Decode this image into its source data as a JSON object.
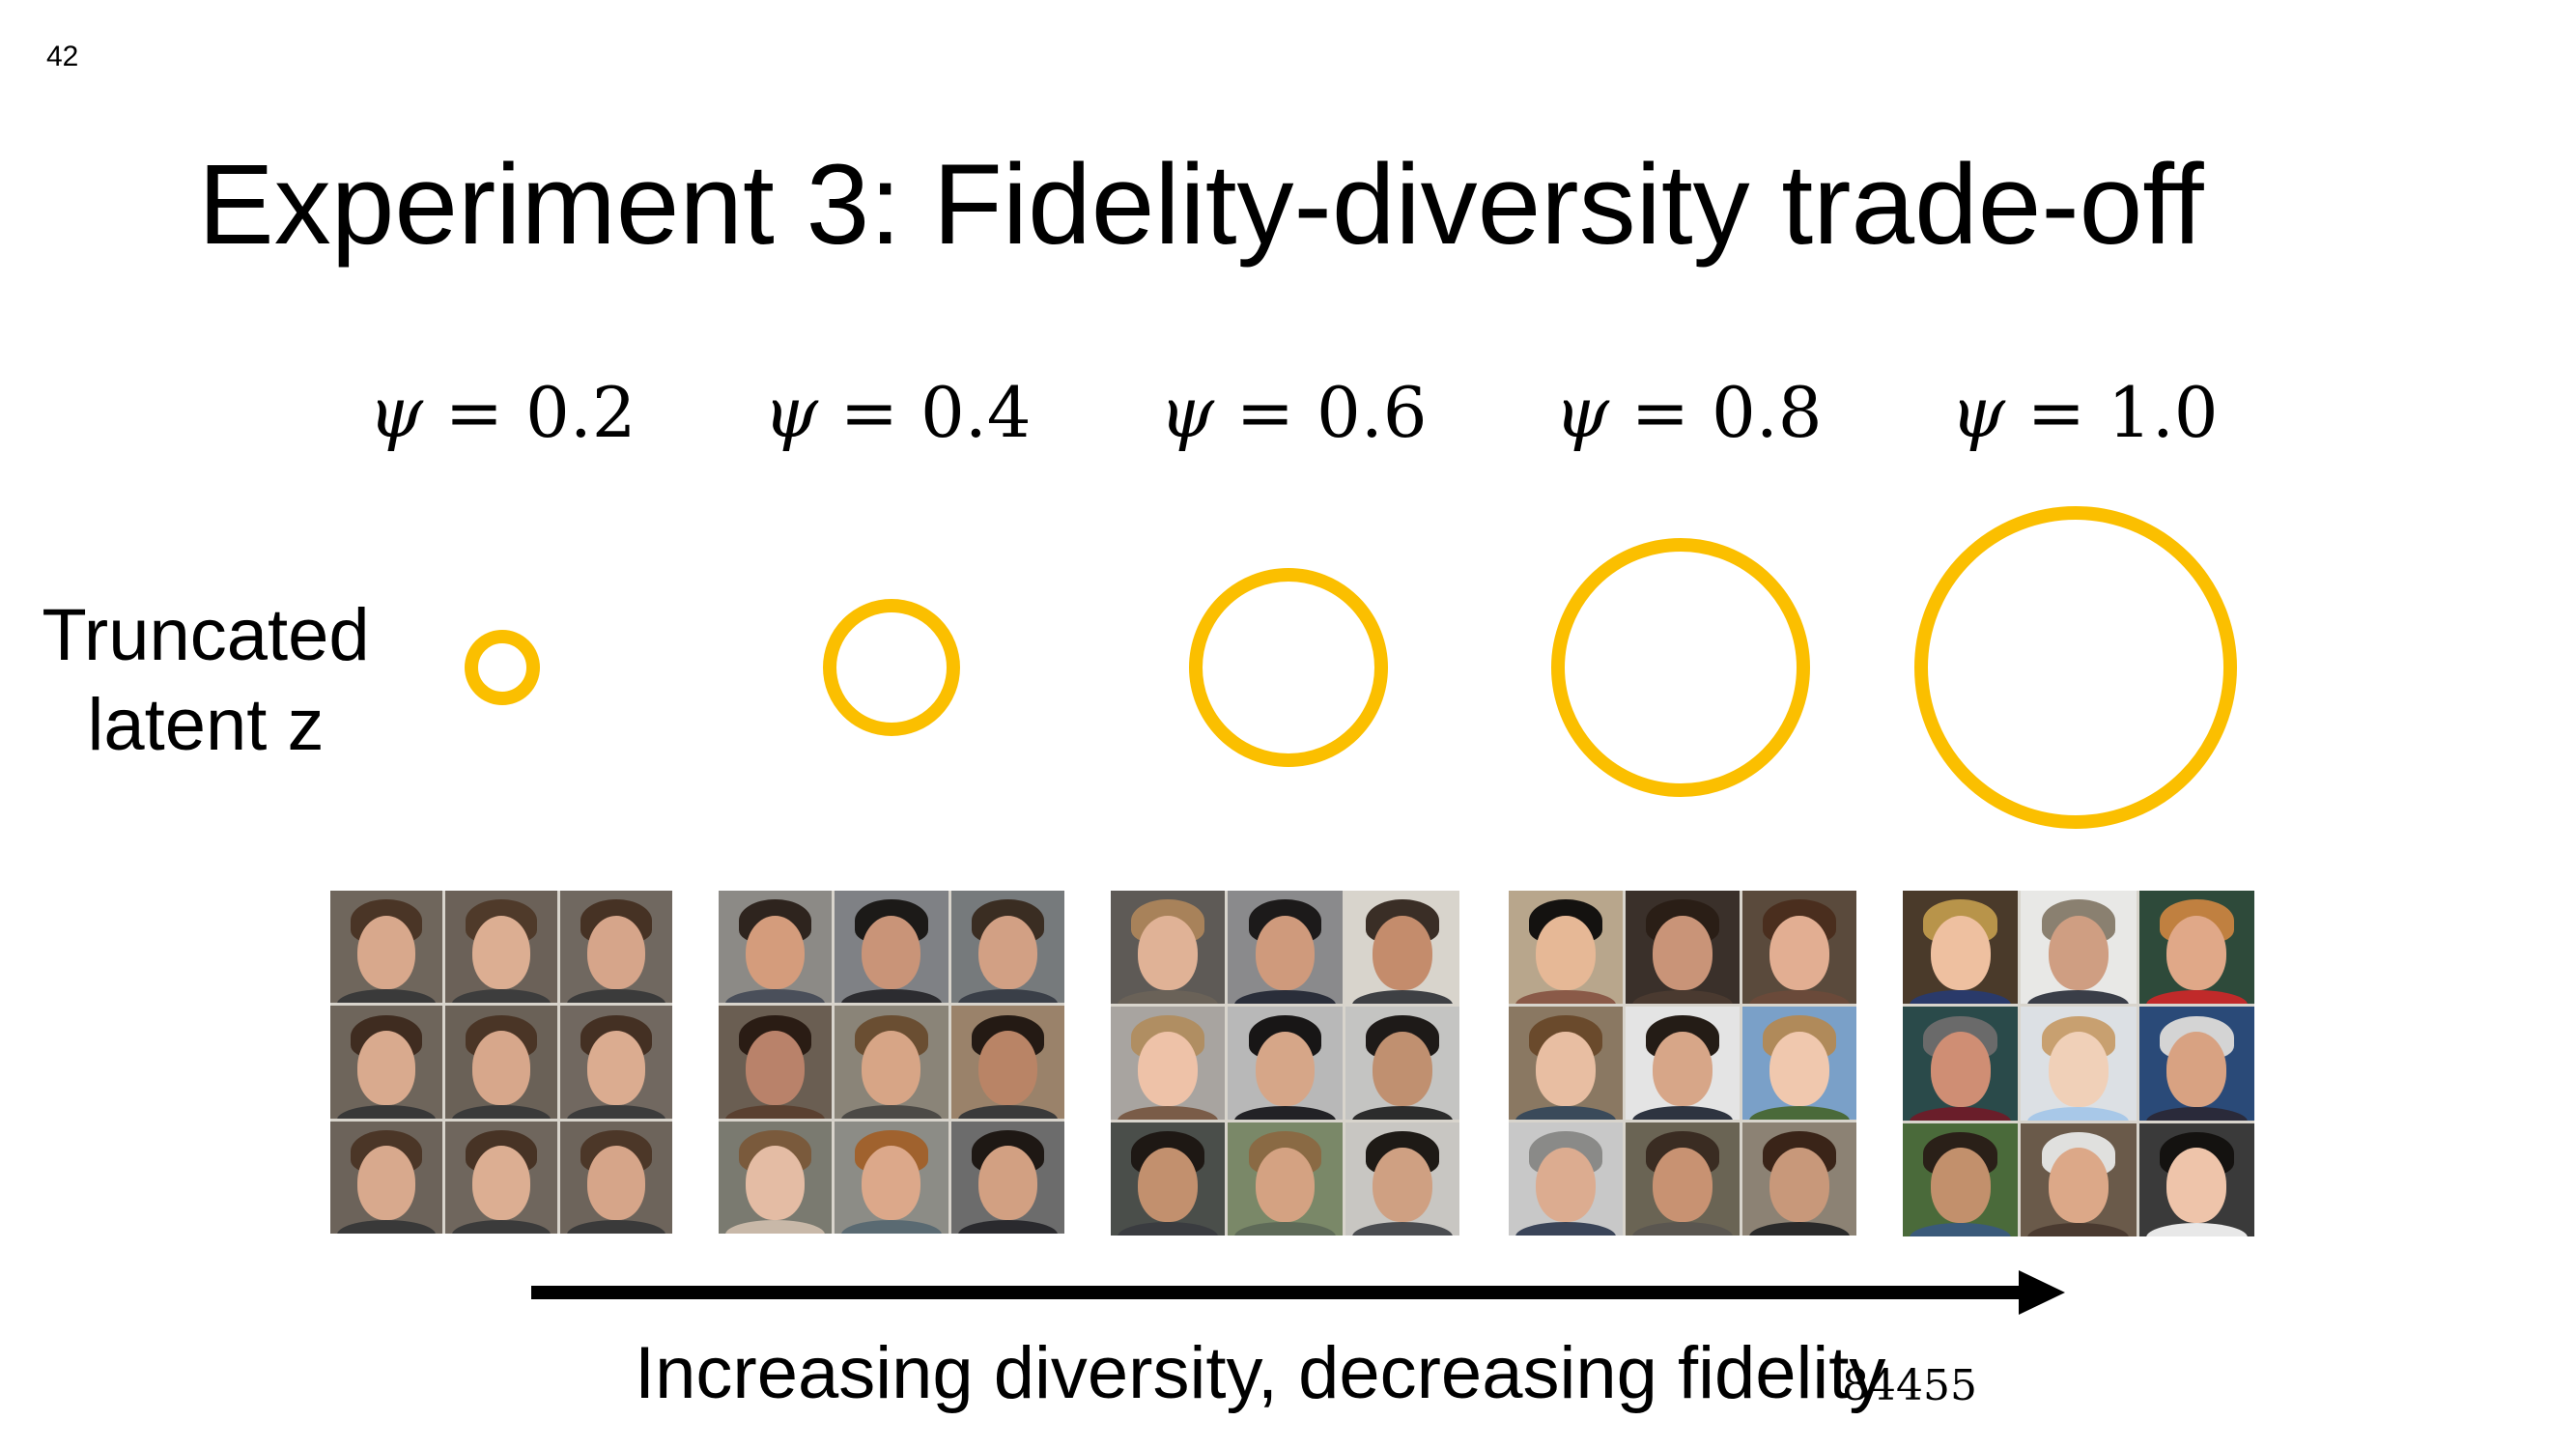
{
  "slide": {
    "page_number": "42",
    "title": "Experiment 3: Fidelity-diversity trade-off",
    "side_label": {
      "line1": "Truncated",
      "line2": "latent z"
    },
    "arrow_caption": "Increasing diversity, decreasing fidelity",
    "slide_code": "84455"
  },
  "psi_levels": [
    {
      "symbol": "ψ",
      "text": " = 0.2"
    },
    {
      "symbol": "ψ",
      "text": " = 0.4"
    },
    {
      "symbol": "ψ",
      "text": " = 0.6"
    },
    {
      "symbol": "ψ",
      "text": " = 0.8"
    },
    {
      "symbol": "ψ",
      "text": " = 1.0"
    }
  ],
  "colors": {
    "circle": "#fbbf00",
    "arrow": "#000000"
  },
  "face_grids": [
    {
      "cells": [
        {
          "bg": "#6f665c",
          "skin": "#d8a88c",
          "hair": "#4a3526",
          "shirt": "#3a3a3a"
        },
        {
          "bg": "#6b6158",
          "skin": "#dcae92",
          "hair": "#4f3a2a",
          "shirt": "#3d3d3d"
        },
        {
          "bg": "#706860",
          "skin": "#d6a58a",
          "hair": "#463224",
          "shirt": "#3b3b3b"
        },
        {
          "bg": "#6e655b",
          "skin": "#d9aa8e",
          "hair": "#3f2c20",
          "shirt": "#383838"
        },
        {
          "bg": "#6a6157",
          "skin": "#d7a78b",
          "hair": "#4a3526",
          "shirt": "#3a3a3a"
        },
        {
          "bg": "#716860",
          "skin": "#dbac90",
          "hair": "#443023",
          "shirt": "#3c3c3c"
        },
        {
          "bg": "#6c635a",
          "skin": "#d8a98d",
          "hair": "#4b3627",
          "shirt": "#393939"
        },
        {
          "bg": "#6f665d",
          "skin": "#dcae92",
          "hair": "#473325",
          "shirt": "#3b3b3b"
        },
        {
          "bg": "#6d645b",
          "skin": "#d6a589",
          "hair": "#4c3728",
          "shirt": "#3a3a3a"
        }
      ]
    },
    {
      "cells": [
        {
          "bg": "#8c8a86",
          "skin": "#d49c7c",
          "hair": "#2e241e",
          "shirt": "#4a4f5a"
        },
        {
          "bg": "#7f8185",
          "skin": "#c99478",
          "hair": "#1c1a18",
          "shirt": "#2c2c30"
        },
        {
          "bg": "#767a7c",
          "skin": "#d2a084",
          "hair": "#3a2d22",
          "shirt": "#3a3f48"
        },
        {
          "bg": "#6a5e52",
          "skin": "#b9826a",
          "hair": "#2a1c14",
          "shirt": "#5a4030"
        },
        {
          "bg": "#8a8478",
          "skin": "#d7a586",
          "hair": "#6a4e32",
          "shirt": "#4c4a46"
        },
        {
          "bg": "#9a826a",
          "skin": "#b98466",
          "hair": "#241a14",
          "shirt": "#3a3a3a"
        },
        {
          "bg": "#7a7a70",
          "skin": "#e4bca4",
          "hair": "#7a5a3c",
          "shirt": "#c8b8a8"
        },
        {
          "bg": "#8c8c86",
          "skin": "#dca88a",
          "hair": "#a0622e",
          "shirt": "#5a6a72"
        },
        {
          "bg": "#6c6c6c",
          "skin": "#d2a082",
          "hair": "#1e1814",
          "shirt": "#2a2a2e"
        }
      ]
    },
    {
      "cells": [
        {
          "bg": "#5e5a56",
          "skin": "#e0b296",
          "hair": "#a8825a",
          "shirt": "#6a6258"
        },
        {
          "bg": "#8a8a8c",
          "skin": "#cf9a7c",
          "hair": "#1c1a1a",
          "shirt": "#2a2e3a"
        },
        {
          "bg": "#d8d4cc",
          "skin": "#c48c6c",
          "hair": "#3a2e26",
          "shirt": "#3e4044"
        },
        {
          "bg": "#a8a4a0",
          "skin": "#eec2a8",
          "hair": "#b08e62",
          "shirt": "#7a5c48"
        },
        {
          "bg": "#b8b8b8",
          "skin": "#d6a688",
          "hair": "#181616",
          "shirt": "#222226"
        },
        {
          "bg": "#c4c4c2",
          "skin": "#c09070",
          "hair": "#1e1a18",
          "shirt": "#2c2c2c"
        },
        {
          "bg": "#4a4e4a",
          "skin": "#c2906e",
          "hair": "#1e1814",
          "shirt": "#3a3c40"
        },
        {
          "bg": "#7a8868",
          "skin": "#d4a282",
          "hair": "#8a6a44",
          "shirt": "#5e6a58"
        },
        {
          "bg": "#c8c6c2",
          "skin": "#cfa082",
          "hair": "#1e1a16",
          "shirt": "#4a4c50"
        }
      ]
    },
    {
      "cells": [
        {
          "bg": "#b8a68c",
          "skin": "#e6b896",
          "hair": "#141210",
          "shirt": "#8a5a48"
        },
        {
          "bg": "#3a302a",
          "skin": "#c99478",
          "hair": "#2a1e16",
          "shirt": "#4a3a30"
        },
        {
          "bg": "#5a4a3c",
          "skin": "#e2ae92",
          "hair": "#4a2e1e",
          "shirt": "#6a4a3a"
        },
        {
          "bg": "#8a7862",
          "skin": "#e8bea2",
          "hair": "#6a4a2c",
          "shirt": "#3a4a5a"
        },
        {
          "bg": "#e4e4e4",
          "skin": "#d7a688",
          "hair": "#241c16",
          "shirt": "#2e3440"
        },
        {
          "bg": "#7aa0c8",
          "skin": "#f0c8ae",
          "hair": "#b08a5a",
          "shirt": "#4a6a3a"
        },
        {
          "bg": "#c8c8c8",
          "skin": "#dcac90",
          "hair": "#8a8a88",
          "shirt": "#3a4458"
        },
        {
          "bg": "#6a6454",
          "skin": "#c89272",
          "hair": "#3a2c22",
          "shirt": "#5a5650"
        },
        {
          "bg": "#8c8274",
          "skin": "#c8987a",
          "hair": "#3a2418",
          "shirt": "#2a2a2a"
        }
      ]
    },
    {
      "cells": [
        {
          "bg": "#4a3a2a",
          "skin": "#eec0a0",
          "hair": "#b8944a",
          "shirt": "#2a3a6a"
        },
        {
          "bg": "#e8e8e6",
          "skin": "#cf9e82",
          "hair": "#8a8070",
          "shirt": "#3a3e48"
        },
        {
          "bg": "#2e4a3a",
          "skin": "#e0a888",
          "hair": "#c08040",
          "shirt": "#c02a2a"
        },
        {
          "bg": "#2a4a4a",
          "skin": "#cf8e74",
          "hair": "#6a6a6a",
          "shirt": "#6a1e2a"
        },
        {
          "bg": "#dce0e4",
          "skin": "#f0d0b8",
          "hair": "#c8a070",
          "shirt": "#a8c8e8"
        },
        {
          "bg": "#2a4a78",
          "skin": "#d8a282",
          "hair": "#d4d4d4",
          "shirt": "#2a2a3a"
        },
        {
          "bg": "#4a6a3a",
          "skin": "#c2906c",
          "hair": "#2a2018",
          "shirt": "#3a5a7a"
        },
        {
          "bg": "#6a5a4a",
          "skin": "#dca888",
          "hair": "#e0e0de",
          "shirt": "#4a3a30"
        },
        {
          "bg": "#3a3a3a",
          "skin": "#eec4aa",
          "hair": "#141210",
          "shirt": "#e8e8e8"
        }
      ]
    }
  ]
}
